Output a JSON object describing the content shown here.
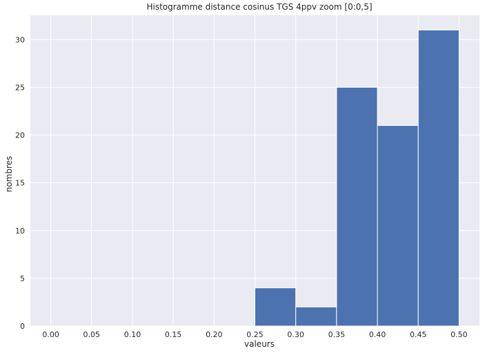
{
  "chart_data": {
    "type": "bar",
    "title": "Histogramme distance cosinus TGS 4ppv zoom [0:0,5]",
    "xlabel": "valeurs",
    "ylabel": "nombres",
    "xlim": [
      -0.025,
      0.525
    ],
    "ylim": [
      0,
      32.55
    ],
    "grid": true,
    "background": "#eaeaf2",
    "bar_color": "#4c72b0",
    "grid_color": "#ffffff",
    "xticks": [
      "0.00",
      "0.05",
      "0.10",
      "0.15",
      "0.20",
      "0.25",
      "0.30",
      "0.35",
      "0.40",
      "0.45",
      "0.50"
    ],
    "xtick_values": [
      0.0,
      0.05,
      0.1,
      0.15,
      0.2,
      0.25,
      0.3,
      0.35,
      0.4,
      0.45,
      0.5
    ],
    "yticks": [
      "0",
      "5",
      "10",
      "15",
      "20",
      "25",
      "30"
    ],
    "ytick_values": [
      0,
      5,
      10,
      15,
      20,
      25,
      30
    ],
    "bins": [
      {
        "x0": 0.25,
        "x1": 0.3,
        "value": 4
      },
      {
        "x0": 0.3,
        "x1": 0.35,
        "value": 2
      },
      {
        "x0": 0.35,
        "x1": 0.4,
        "value": 25
      },
      {
        "x0": 0.4,
        "x1": 0.45,
        "value": 21
      },
      {
        "x0": 0.45,
        "x1": 0.5,
        "value": 31
      }
    ]
  }
}
